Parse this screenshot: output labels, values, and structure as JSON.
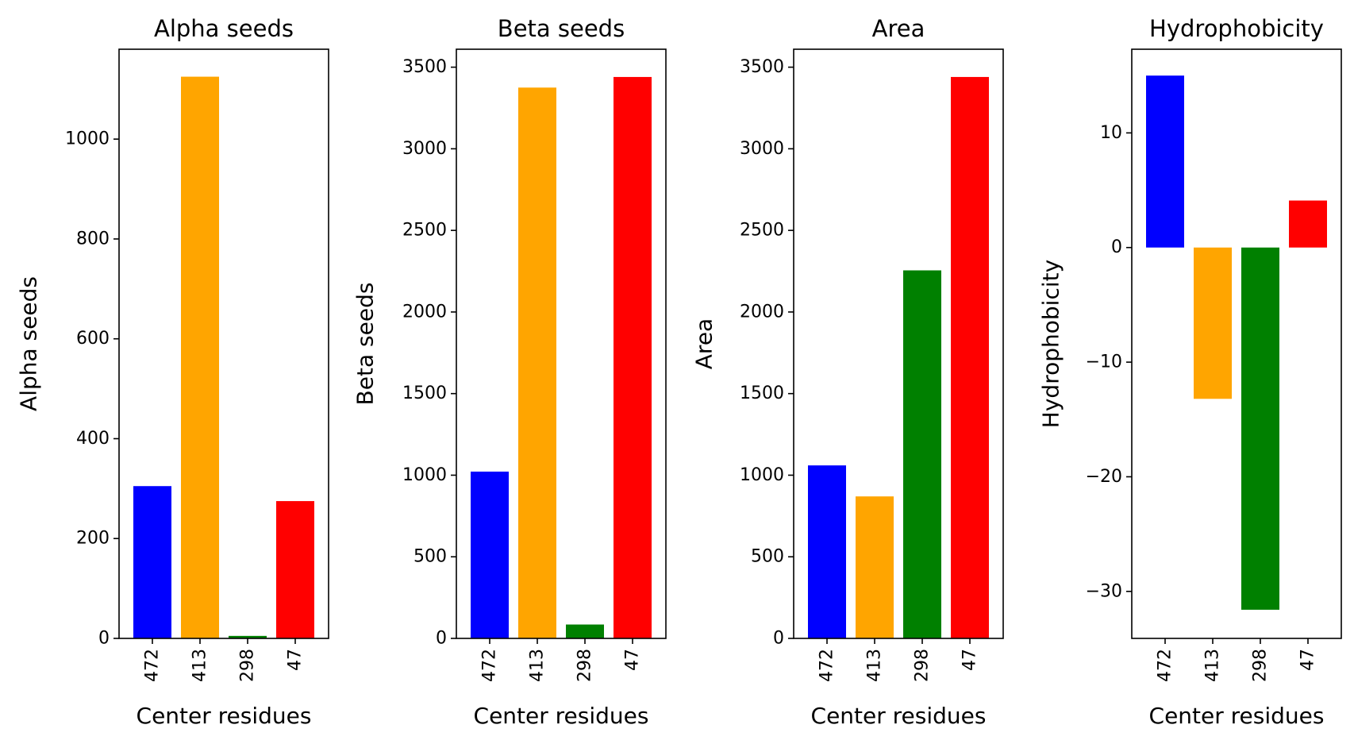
{
  "chart_data": [
    {
      "type": "bar",
      "title": "Alpha seeds",
      "xlabel": "Center residues",
      "ylabel": "Alpha seeds",
      "categories": [
        "472",
        "413",
        "298",
        "47"
      ],
      "values": [
        305,
        1125,
        5,
        275
      ],
      "colors": [
        "#0000ff",
        "#ffa500",
        "#008000",
        "#ff0000"
      ],
      "ylim": [
        0,
        1180
      ],
      "yticks": [
        0,
        200,
        400,
        600,
        800,
        1000
      ],
      "grid": false,
      "xtick_rotation": 90
    },
    {
      "type": "bar",
      "title": "Beta seeds",
      "xlabel": "Center residues",
      "ylabel": "Beta seeds",
      "categories": [
        "472",
        "413",
        "298",
        "47"
      ],
      "values": [
        1022,
        3375,
        85,
        3440
      ],
      "colors": [
        "#0000ff",
        "#ffa500",
        "#008000",
        "#ff0000"
      ],
      "ylim": [
        0,
        3610
      ],
      "yticks": [
        0,
        500,
        1000,
        1500,
        2000,
        2500,
        3000,
        3500
      ],
      "grid": false,
      "xtick_rotation": 90
    },
    {
      "type": "bar",
      "title": "Area",
      "xlabel": "Center residues",
      "ylabel": "Area",
      "categories": [
        "472",
        "413",
        "298",
        "47"
      ],
      "values": [
        1060,
        870,
        2255,
        3440
      ],
      "colors": [
        "#0000ff",
        "#ffa500",
        "#008000",
        "#ff0000"
      ],
      "ylim": [
        0,
        3610
      ],
      "yticks": [
        0,
        500,
        1000,
        1500,
        2000,
        2500,
        3000,
        3500
      ],
      "grid": false,
      "xtick_rotation": 90
    },
    {
      "type": "bar",
      "title": "Hydrophobicity",
      "xlabel": "Center residues",
      "ylabel": "Hydrophobicity",
      "categories": [
        "472",
        "413",
        "298",
        "47"
      ],
      "values": [
        15.0,
        -13.2,
        -31.6,
        4.1
      ],
      "colors": [
        "#0000ff",
        "#ffa500",
        "#008000",
        "#ff0000"
      ],
      "ylim": [
        -34.1,
        17.3
      ],
      "yticks": [
        -30,
        -20,
        -10,
        0,
        10
      ],
      "grid": false,
      "xtick_rotation": 90
    }
  ]
}
